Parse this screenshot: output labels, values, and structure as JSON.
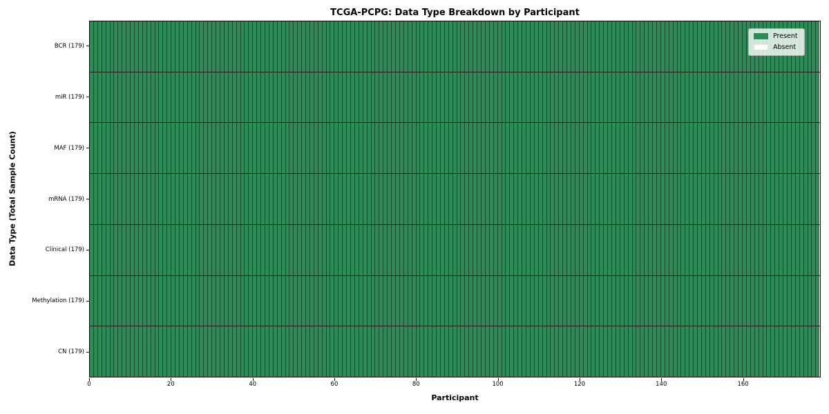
{
  "chart_data": {
    "type": "heatmap",
    "title": "TCGA-PCPG: Data Type Breakdown by Participant",
    "xlabel": "Participant",
    "ylabel": "Data Type (Total Sample Count)",
    "n_participants": 179,
    "xlim": [
      0,
      179
    ],
    "x_ticks": [
      0,
      20,
      40,
      60,
      80,
      100,
      120,
      140,
      160
    ],
    "rows": [
      {
        "label": "BCR (179)",
        "name": "BCR",
        "total_samples": 179,
        "present_count": 179,
        "absent_count": 0
      },
      {
        "label": "miR (179)",
        "name": "miR",
        "total_samples": 179,
        "present_count": 179,
        "absent_count": 0
      },
      {
        "label": "MAF (179)",
        "name": "MAF",
        "total_samples": 179,
        "present_count": 179,
        "absent_count": 0
      },
      {
        "label": "mRNA (179)",
        "name": "mRNA",
        "total_samples": 179,
        "present_count": 179,
        "absent_count": 0
      },
      {
        "label": "Clinical (179)",
        "name": "Clinical",
        "total_samples": 179,
        "present_count": 179,
        "absent_count": 0
      },
      {
        "label": "Methylation (179)",
        "name": "Methylation",
        "total_samples": 179,
        "present_count": 179,
        "absent_count": 0
      },
      {
        "label": "CN (179)",
        "name": "CN",
        "total_samples": 179,
        "present_count": 179,
        "absent_count": 0
      }
    ],
    "all_cells_state": "present",
    "legend": {
      "position": "upper right",
      "entries": [
        {
          "label": "Present",
          "color": "#2e8b57"
        },
        {
          "label": "Absent",
          "color": "#ffffff"
        }
      ]
    },
    "colors": {
      "present": "#2e8b57",
      "absent": "#ffffff",
      "cell_edge": "rgba(0,0,0,0.45)",
      "row_divider": "#161616",
      "spine": "#000000"
    },
    "grid": false
  }
}
